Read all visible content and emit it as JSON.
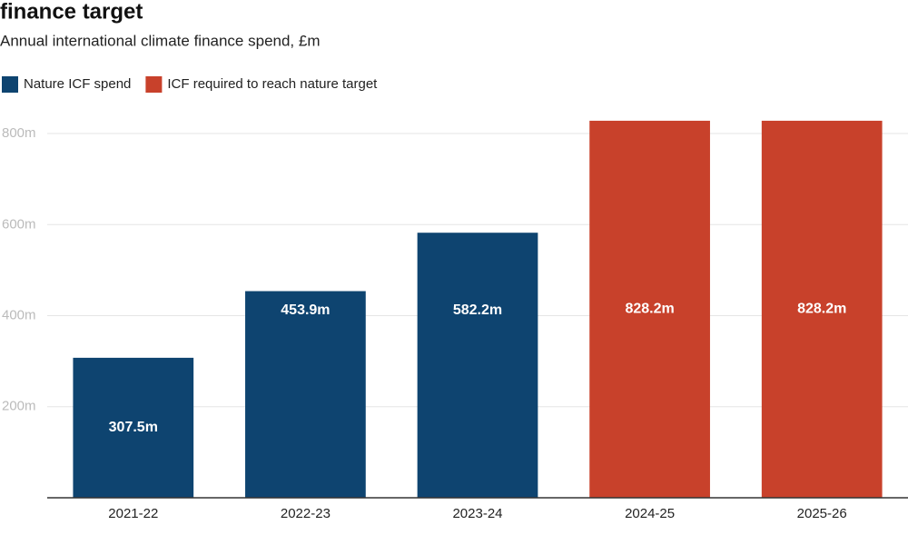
{
  "chart_data": {
    "type": "bar",
    "title": "finance target",
    "subtitle": "Annual international climate finance spend, £m",
    "categories": [
      "2021-22",
      "2022-23",
      "2023-24",
      "2024-25",
      "2025-26"
    ],
    "series": [
      {
        "name": "Nature ICF spend",
        "color": "#0e4470",
        "values": [
          307.5,
          453.9,
          582.2,
          null,
          null
        ],
        "value_labels": [
          "307.5m",
          "453.9m",
          "582.2m",
          null,
          null
        ]
      },
      {
        "name": "ICF required to reach nature target",
        "color": "#c8412b",
        "values": [
          null,
          null,
          null,
          828.2,
          828.2
        ],
        "value_labels": [
          null,
          null,
          null,
          "828.2m",
          "828.2m"
        ]
      }
    ],
    "ylim": [
      0,
      850
    ],
    "yticks": [
      {
        "value": 200,
        "label": "200m"
      },
      {
        "value": 400,
        "label": "400m"
      },
      {
        "value": 600,
        "label": "600m"
      },
      {
        "value": 800,
        "label": "800m"
      }
    ],
    "grid": true,
    "legend": "top-left"
  }
}
